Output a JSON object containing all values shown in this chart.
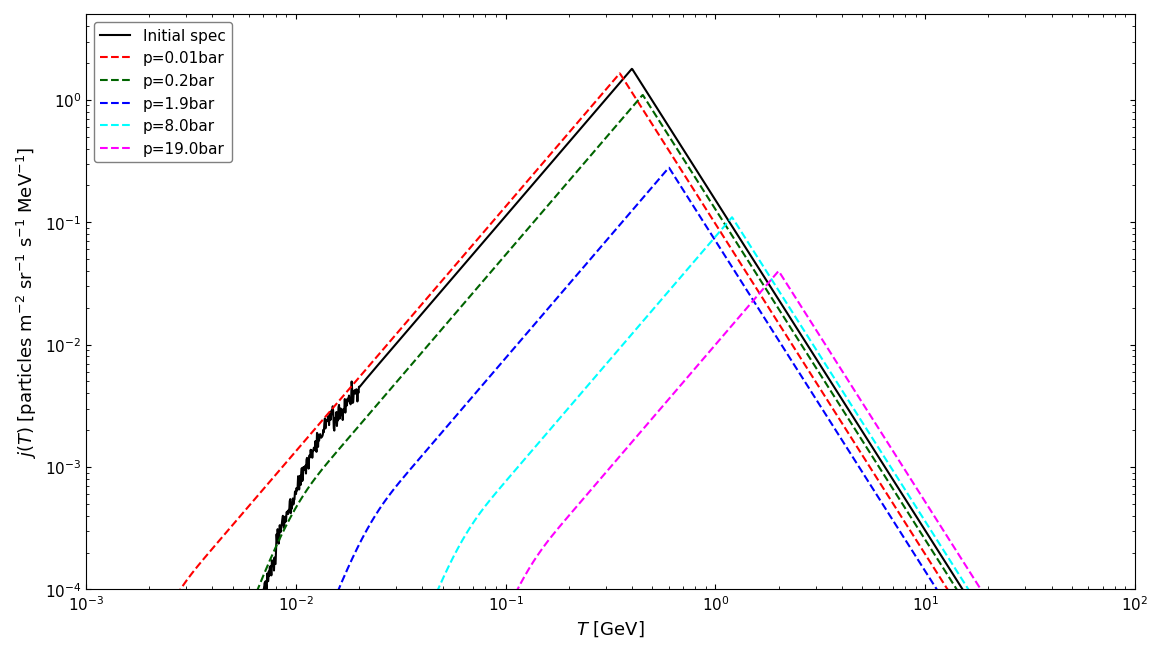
{
  "title": "",
  "xlabel": "$T$ [GeV]",
  "ylabel": "$j(T)$ [particles m$^{-2}$ sr$^{-1}$ s$^{-1}$ MeV$^{-1}$]",
  "xlim": [
    0.001,
    100.0
  ],
  "ylim": [
    0.0001,
    5.0
  ],
  "series": [
    {
      "label": "Initial spec",
      "color": "black",
      "linestyle": "-",
      "lw": 1.5,
      "peak_T": 0.4,
      "peak_j": 1.8,
      "cutoff_low": 0.012,
      "cutoff_high": 70,
      "noisy": true
    },
    {
      "label": "p=0.01bar",
      "color": "red",
      "linestyle": "--",
      "lw": 1.5,
      "peak_T": 0.35,
      "peak_j": 1.65,
      "cutoff_low": 0.002,
      "cutoff_high": 70,
      "noisy": false
    },
    {
      "label": "p=0.2bar",
      "color": "darkgreen",
      "linestyle": "--",
      "lw": 1.5,
      "peak_T": 0.45,
      "peak_j": 1.1,
      "cutoff_low": 0.008,
      "cutoff_high": 70,
      "noisy": false
    },
    {
      "label": "p=1.9bar",
      "color": "blue",
      "linestyle": "--",
      "lw": 1.5,
      "peak_T": 0.6,
      "peak_j": 0.28,
      "cutoff_low": 0.018,
      "cutoff_high": 70,
      "noisy": false
    },
    {
      "label": "p=8.0bar",
      "color": "cyan",
      "linestyle": "--",
      "lw": 1.5,
      "peak_T": 1.2,
      "peak_j": 0.11,
      "cutoff_low": 0.05,
      "cutoff_high": 70,
      "noisy": false
    },
    {
      "label": "p=19.0bar",
      "color": "magenta",
      "linestyle": "--",
      "lw": 1.5,
      "peak_T": 2.0,
      "peak_j": 0.04,
      "cutoff_low": 0.1,
      "cutoff_high": 70,
      "noisy": false
    }
  ],
  "background_color": "white",
  "legend_loc": "upper left",
  "legend_fontsize": 11,
  "tick_fontsize": 11,
  "label_fontsize": 13
}
